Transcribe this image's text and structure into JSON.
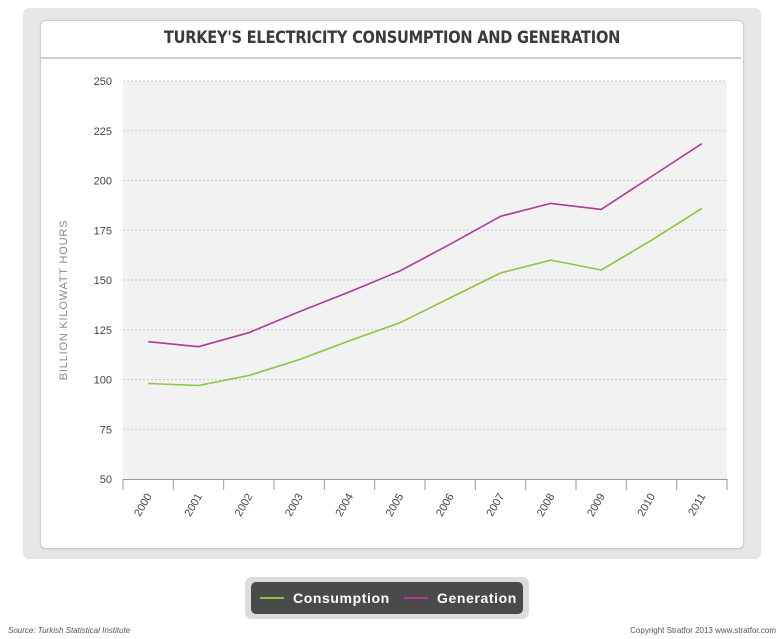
{
  "colors": {
    "consumption": "#8cc63f",
    "generation": "#b0399a",
    "grid": "#c9c9c9",
    "plot_bg": "#f2f2f2",
    "axis_text": "#444444"
  },
  "chart_data": {
    "type": "line",
    "title": "TURKEY'S ELECTRICITY CONSUMPTION AND GENERATION",
    "ylabel": "BILLION KILOWATT HOURS",
    "xlabel": "",
    "ylim": [
      50,
      250
    ],
    "yticks": [
      50,
      75,
      100,
      125,
      150,
      175,
      200,
      225,
      250
    ],
    "grid": true,
    "legend_position": "bottom",
    "x": [
      "2000",
      "2001",
      "2002",
      "2003",
      "2004",
      "2005",
      "2006",
      "2007",
      "2008",
      "2009",
      "2010",
      "2011"
    ],
    "series": [
      {
        "name": "Consumption",
        "color": "#8cc63f",
        "values": [
          98,
          97,
          102,
          110,
          119.5,
          128.5,
          141,
          153.5,
          160,
          155,
          170,
          186
        ]
      },
      {
        "name": "Generation",
        "color": "#b0399a",
        "values": [
          119,
          116.5,
          123.5,
          134,
          144,
          154.5,
          168,
          182,
          188.5,
          185.5,
          202,
          218.5
        ]
      }
    ]
  },
  "legend": {
    "consumption_label": "Consumption",
    "generation_label": "Generation"
  },
  "footer": {
    "source": "Source: Turkish Statistical Institute",
    "copyright": "Copyright Stratfor 2013   www.stratfor.com"
  }
}
